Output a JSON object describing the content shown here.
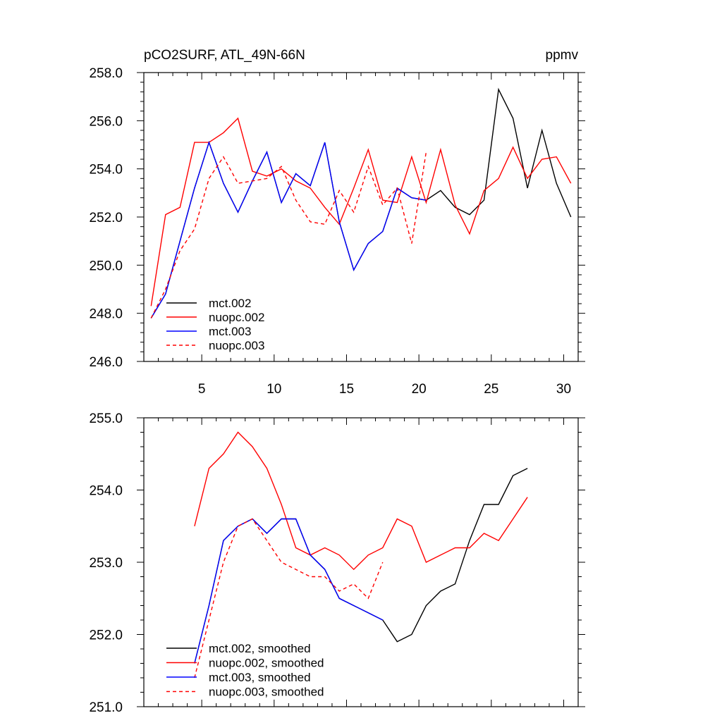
{
  "chart_data": [
    {
      "type": "line",
      "title": "pCO2SURF, ATL_49N-66N",
      "units": "ppmv",
      "xlabel": "",
      "ylabel": "",
      "xlim": [
        1,
        31
      ],
      "ylim": [
        246,
        258
      ],
      "xticks": [
        5,
        10,
        15,
        20,
        25,
        30
      ],
      "xtick_labels": [
        "5",
        "10",
        "15",
        "20",
        "25",
        "30"
      ],
      "yticks": [
        246,
        248,
        250,
        252,
        254,
        256,
        258
      ],
      "ytick_labels": [
        "246.0",
        "248.0",
        "250.0",
        "252.0",
        "254.0",
        "256.0",
        "258.0"
      ],
      "legend_position": "bottom-left",
      "series": [
        {
          "name": "mct.002",
          "color": "#000000",
          "dash": "solid",
          "x": [
            1.5,
            2.5,
            3.5,
            4.5,
            5.5,
            6.5,
            7.5,
            8.5,
            9.5,
            10.5,
            11.5,
            12.5,
            13.5,
            14.5,
            15.5,
            16.5,
            17.5,
            18.5,
            19.5,
            20.5,
            21.5,
            22.5,
            23.5,
            24.5,
            25.5,
            26.5,
            27.5,
            28.5,
            29.5,
            30.5
          ],
          "values": [
            247.8,
            248.8,
            251.0,
            253.2,
            255.1,
            253.4,
            252.2,
            253.5,
            254.7,
            252.6,
            253.8,
            253.3,
            255.1,
            251.8,
            249.8,
            250.9,
            251.4,
            253.2,
            252.8,
            252.7,
            253.1,
            252.4,
            252.1,
            252.7,
            257.3,
            256.1,
            253.2,
            255.6,
            253.4,
            252.0
          ]
        },
        {
          "name": "nuopc.002",
          "color": "#ff0000",
          "dash": "solid",
          "x": [
            1.5,
            2.5,
            3.5,
            4.5,
            5.5,
            6.5,
            7.5,
            8.5,
            9.5,
            10.5,
            11.5,
            12.5,
            13.5,
            14.5,
            15.5,
            16.5,
            17.5,
            18.5,
            19.5,
            20.5,
            21.5,
            22.5,
            23.5,
            24.5,
            25.5,
            26.5,
            27.5,
            28.5,
            29.5,
            30.5
          ],
          "values": [
            248.3,
            252.1,
            252.4,
            255.1,
            255.1,
            255.5,
            256.1,
            253.9,
            253.7,
            254.0,
            253.5,
            253.2,
            252.4,
            251.7,
            253.2,
            254.8,
            252.7,
            252.6,
            254.5,
            252.6,
            254.8,
            252.5,
            251.3,
            253.1,
            253.6,
            254.9,
            253.6,
            254.4,
            254.5,
            253.4
          ]
        },
        {
          "name": "mct.003",
          "color": "#0000ff",
          "dash": "solid",
          "x": [
            1.5,
            2.5,
            3.5,
            4.5,
            5.5,
            6.5,
            7.5,
            8.5,
            9.5,
            10.5,
            11.5,
            12.5,
            13.5,
            14.5,
            15.5,
            16.5,
            17.5,
            18.5,
            19.5,
            20.5
          ],
          "values": [
            247.8,
            248.8,
            251.0,
            253.2,
            255.1,
            253.4,
            252.2,
            253.5,
            254.7,
            252.6,
            253.8,
            253.3,
            255.1,
            251.8,
            249.8,
            250.9,
            251.4,
            253.2,
            252.8,
            252.7
          ]
        },
        {
          "name": "nuopc.003",
          "color": "#ff0000",
          "dash": "dashed",
          "x": [
            1.5,
            2.5,
            3.5,
            4.5,
            5.5,
            6.5,
            7.5,
            8.5,
            9.5,
            10.5,
            11.5,
            12.5,
            13.5,
            14.5,
            15.5,
            16.5,
            17.5,
            18.5,
            19.5,
            20.5
          ],
          "values": [
            247.8,
            249.0,
            250.6,
            251.5,
            253.6,
            254.5,
            253.4,
            253.5,
            253.6,
            254.1,
            252.7,
            251.8,
            251.7,
            253.1,
            252.2,
            254.1,
            252.5,
            253.2,
            250.9,
            254.7
          ]
        }
      ]
    },
    {
      "type": "line",
      "title": "",
      "xlabel": "",
      "ylabel": "",
      "xlim": [
        1,
        31
      ],
      "ylim": [
        251,
        255
      ],
      "xticks": [
        5,
        10,
        15,
        20,
        25,
        30
      ],
      "yticks": [
        251,
        252,
        253,
        254,
        255
      ],
      "ytick_labels": [
        "251.0",
        "252.0",
        "253.0",
        "254.0",
        "255.0"
      ],
      "legend_position": "bottom-left",
      "series": [
        {
          "name": "mct.002, smoothed",
          "color": "#000000",
          "dash": "solid",
          "x": [
            4.5,
            5.5,
            6.5,
            7.5,
            8.5,
            9.5,
            10.5,
            11.5,
            12.5,
            13.5,
            14.5,
            15.5,
            16.5,
            17.5,
            18.5,
            19.5,
            20.5,
            21.5,
            22.5,
            23.5,
            24.5,
            25.5,
            26.5,
            27.5
          ],
          "values": [
            251.6,
            252.4,
            253.3,
            253.5,
            253.6,
            253.4,
            253.6,
            253.6,
            253.1,
            252.9,
            252.5,
            252.4,
            252.3,
            252.2,
            251.9,
            252.0,
            252.4,
            252.6,
            252.7,
            253.3,
            253.8,
            253.8,
            254.2,
            254.3
          ]
        },
        {
          "name": "nuopc.002, smoothed",
          "color": "#ff0000",
          "dash": "solid",
          "x": [
            4.5,
            5.5,
            6.5,
            7.5,
            8.5,
            9.5,
            10.5,
            11.5,
            12.5,
            13.5,
            14.5,
            15.5,
            16.5,
            17.5,
            18.5,
            19.5,
            20.5,
            21.5,
            22.5,
            23.5,
            24.5,
            25.5,
            26.5,
            27.5
          ],
          "values": [
            253.5,
            254.3,
            254.5,
            254.8,
            254.6,
            254.3,
            253.8,
            253.2,
            253.1,
            253.2,
            253.1,
            252.9,
            253.1,
            253.2,
            253.6,
            253.5,
            253.0,
            253.1,
            253.2,
            253.2,
            253.4,
            253.3,
            253.6,
            253.9
          ]
        },
        {
          "name": "mct.003, smoothed",
          "color": "#0000ff",
          "dash": "solid",
          "x": [
            4.5,
            5.5,
            6.5,
            7.5,
            8.5,
            9.5,
            10.5,
            11.5,
            12.5,
            13.5,
            14.5,
            15.5,
            16.5,
            17.5
          ],
          "values": [
            251.6,
            252.4,
            253.3,
            253.5,
            253.6,
            253.4,
            253.6,
            253.6,
            253.1,
            252.9,
            252.5,
            252.4,
            252.3,
            252.2
          ]
        },
        {
          "name": "nuopc.003, smoothed",
          "color": "#ff0000",
          "dash": "dashed",
          "x": [
            4.5,
            5.5,
            6.5,
            7.5,
            8.5,
            9.5,
            10.5,
            11.5,
            12.5,
            13.5,
            14.5,
            15.5,
            16.5,
            17.5
          ],
          "values": [
            251.4,
            252.2,
            253.0,
            253.5,
            253.6,
            253.3,
            253.0,
            252.9,
            252.8,
            252.8,
            252.6,
            252.7,
            252.5,
            253.0
          ]
        }
      ]
    }
  ]
}
